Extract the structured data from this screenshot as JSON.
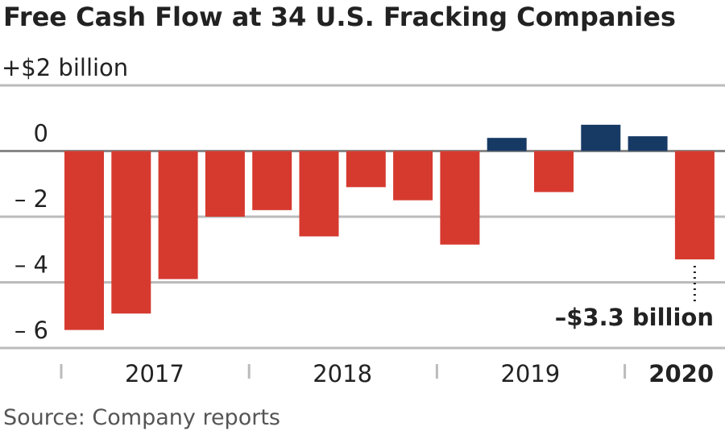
{
  "chart_data": {
    "type": "bar",
    "title": "Free Cash Flow at 34 U.S. Fracking Companies",
    "categories": [
      null,
      null,
      null,
      null,
      null,
      null,
      null,
      null,
      null,
      null,
      null,
      null,
      null,
      null
    ],
    "values": [
      -5.45,
      -4.95,
      -3.9,
      -2.0,
      -1.8,
      -2.6,
      -1.1,
      -1.5,
      -2.85,
      0.4,
      -1.25,
      0.8,
      0.45,
      -3.3
    ],
    "negative_color": "#d63a2f",
    "positive_color": "#173a64",
    "year_labels": [
      "2017",
      "2018",
      "2019",
      "2020"
    ],
    "ylim": [
      -6.6,
      2.6
    ],
    "yticks": [
      {
        "value": 2,
        "label": "+$2 billion"
      },
      0,
      {
        "value": -2,
        "label": "– 2"
      },
      {
        "value": -4,
        "label": "– 4"
      },
      {
        "value": -6,
        "label": "– 6"
      }
    ],
    "grid": true,
    "annotation": "–$3.3 billion",
    "source": "Source: Company reports"
  }
}
